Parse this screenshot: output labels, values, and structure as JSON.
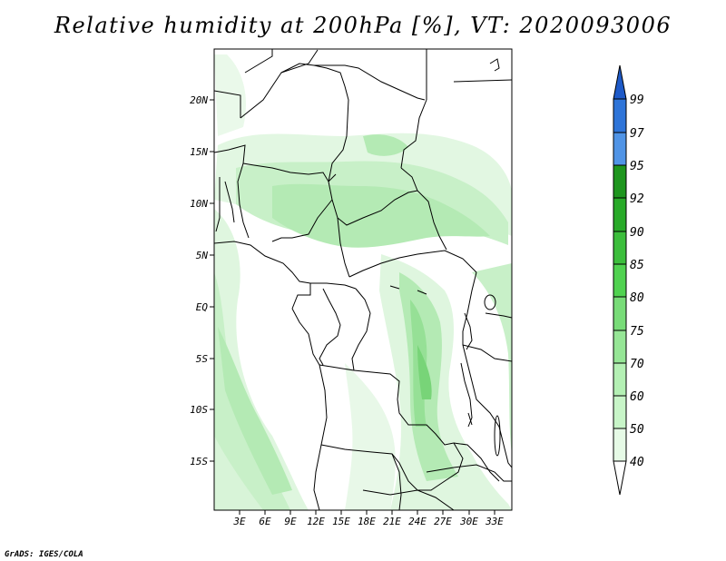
{
  "title": "Relative humidity at 200hPa [%], VT: 2020093006",
  "footer": "GrADS: IGES/COLA",
  "map": {
    "lat_labels": [
      "20N",
      "15N",
      "10N",
      "5N",
      "EQ",
      "5S",
      "10S",
      "15S"
    ],
    "lon_labels": [
      "3E",
      "6E",
      "9E",
      "12E",
      "15E",
      "18E",
      "21E",
      "24E",
      "27E",
      "30E",
      "33E"
    ]
  },
  "colorbar": {
    "levels": [
      "40",
      "50",
      "60",
      "70",
      "75",
      "80",
      "85",
      "90",
      "92",
      "95",
      "97",
      "99"
    ],
    "colors": {
      "c40_50": "#e6fae6",
      "c50_60": "#c8f5c8",
      "c60_70": "#b4f0b4",
      "c70_75": "#96e696",
      "c75_80": "#78dc78",
      "c80_85": "#50d250",
      "c85_90": "#3cbe3c",
      "c90_92": "#28aa28",
      "c92_95": "#1e961e",
      "c95_97": "#5094e6",
      "c97_99": "#2e74d8",
      "c99_top": "#1e5ac8"
    }
  }
}
